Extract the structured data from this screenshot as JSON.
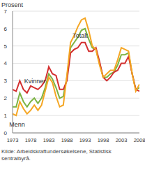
{
  "chart_data": {
    "type": "line",
    "y_label": "Prosent",
    "source": "Kilde: Arbeidskraftundersøkelsene, Statistisk sentralbyrå.",
    "x": [
      1973,
      1974,
      1975,
      1976,
      1977,
      1978,
      1979,
      1980,
      1981,
      1982,
      1983,
      1984,
      1985,
      1986,
      1987,
      1988,
      1989,
      1990,
      1991,
      1992,
      1993,
      1994,
      1995,
      1996,
      1997,
      1998,
      1999,
      2000,
      2001,
      2002,
      2003,
      2004,
      2005,
      2006,
      2007,
      2008
    ],
    "xlim": [
      1973,
      2008
    ],
    "xticks": [
      1973,
      1978,
      1983,
      1988,
      1993,
      1998,
      2003,
      2008
    ],
    "ylim": [
      0,
      7
    ],
    "yticks": [
      0,
      1,
      2,
      3,
      4,
      5,
      6,
      7
    ],
    "grid": true,
    "series": [
      {
        "name": "Totalt",
        "color": "#7cb342",
        "values": [
          1.5,
          1.5,
          2.3,
          1.8,
          1.5,
          1.8,
          2.0,
          1.7,
          2.0,
          2.6,
          3.4,
          3.1,
          2.6,
          2.0,
          2.1,
          3.2,
          4.9,
          5.2,
          5.5,
          5.9,
          6.0,
          5.4,
          4.9,
          4.8,
          4.0,
          3.2,
          3.2,
          3.4,
          3.5,
          3.9,
          4.5,
          4.5,
          4.6,
          3.4,
          2.5,
          2.6
        ]
      },
      {
        "name": "Kvinner",
        "color": "#d32f2f",
        "values": [
          2.5,
          2.4,
          3.0,
          2.5,
          2.3,
          2.7,
          2.6,
          2.5,
          2.7,
          3.0,
          3.8,
          3.4,
          3.3,
          2.5,
          2.5,
          3.0,
          4.6,
          4.8,
          4.9,
          5.2,
          5.2,
          4.7,
          4.7,
          4.9,
          4.1,
          3.2,
          3.0,
          3.2,
          3.5,
          3.6,
          4.0,
          4.0,
          4.4,
          3.4,
          2.5,
          2.4
        ]
      },
      {
        "name": "Menn",
        "color": "#f5a623",
        "values": [
          1.1,
          1.0,
          1.8,
          1.4,
          1.1,
          1.3,
          1.6,
          1.3,
          1.6,
          2.4,
          3.2,
          2.9,
          2.1,
          1.5,
          1.6,
          3.3,
          5.2,
          5.6,
          6.1,
          6.5,
          6.6,
          5.9,
          5.0,
          4.8,
          3.9,
          3.2,
          3.4,
          3.6,
          3.6,
          4.2,
          4.9,
          4.8,
          4.7,
          3.4,
          2.4,
          2.8
        ]
      }
    ]
  }
}
